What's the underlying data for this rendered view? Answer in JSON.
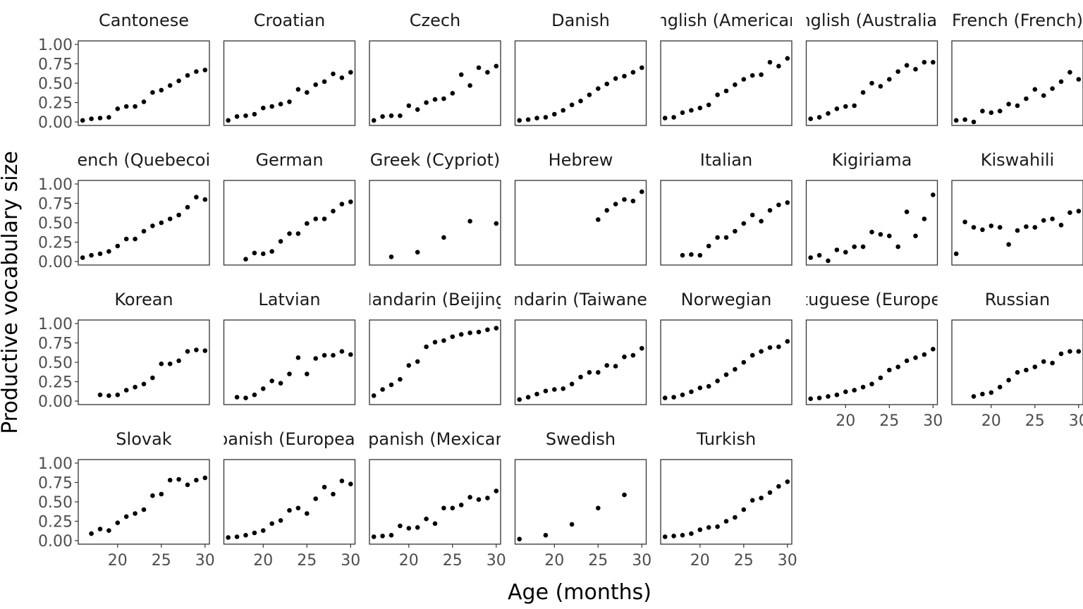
{
  "chart_data": {
    "type": "scatter",
    "facet": "language",
    "xlabel": "Age (months)",
    "ylabel": "Productive vocabulary size",
    "xlim": [
      15.5,
      30.5
    ],
    "ylim": [
      0,
      1
    ],
    "x_ticks": [
      20,
      25,
      30
    ],
    "y_ticks": [
      0,
      0.25,
      0.5,
      0.75,
      1
    ],
    "y_tick_labels": [
      "0.00",
      "0.25",
      "0.50",
      "0.75",
      "1.00"
    ],
    "x_tick_labels": [
      "20",
      "25",
      "30"
    ],
    "grid": false,
    "point_color": "#000000",
    "panels": [
      {
        "name": "Cantonese",
        "x": [
          16,
          17,
          18,
          19,
          20,
          21,
          22,
          23,
          24,
          25,
          26,
          27,
          28,
          29,
          30
        ],
        "y": [
          0.02,
          0.04,
          0.05,
          0.06,
          0.17,
          0.2,
          0.2,
          0.26,
          0.38,
          0.41,
          0.47,
          0.53,
          0.6,
          0.65,
          0.67
        ]
      },
      {
        "name": "Croatian",
        "x": [
          16,
          17,
          18,
          19,
          20,
          21,
          22,
          23,
          24,
          25,
          26,
          27,
          28,
          29,
          30
        ],
        "y": [
          0.02,
          0.07,
          0.08,
          0.1,
          0.18,
          0.2,
          0.23,
          0.26,
          0.42,
          0.38,
          0.48,
          0.52,
          0.62,
          0.57,
          0.64
        ]
      },
      {
        "name": "Czech",
        "x": [
          16,
          17,
          18,
          19,
          20,
          21,
          22,
          23,
          24,
          25,
          26,
          27,
          28,
          29,
          30
        ],
        "y": [
          0.02,
          0.07,
          0.08,
          0.08,
          0.21,
          0.16,
          0.25,
          0.29,
          0.3,
          0.37,
          0.61,
          0.47,
          0.7,
          0.64,
          0.72
        ]
      },
      {
        "name": "Danish",
        "x": [
          16,
          17,
          18,
          19,
          20,
          21,
          22,
          23,
          24,
          25,
          26,
          27,
          28,
          29,
          30
        ],
        "y": [
          0.02,
          0.03,
          0.05,
          0.06,
          0.1,
          0.15,
          0.22,
          0.27,
          0.35,
          0.43,
          0.49,
          0.56,
          0.59,
          0.64,
          0.7
        ]
      },
      {
        "name": "English (American)",
        "x": [
          16,
          17,
          18,
          19,
          20,
          21,
          22,
          23,
          24,
          25,
          26,
          27,
          28,
          29,
          30
        ],
        "y": [
          0.05,
          0.06,
          0.12,
          0.15,
          0.18,
          0.22,
          0.35,
          0.4,
          0.48,
          0.55,
          0.6,
          0.61,
          0.77,
          0.72,
          0.82
        ]
      },
      {
        "name": "English (Australian)",
        "x": [
          16,
          17,
          18,
          19,
          20,
          21,
          22,
          23,
          24,
          25,
          26,
          27,
          28,
          29,
          30
        ],
        "y": [
          0.04,
          0.06,
          0.11,
          0.17,
          0.2,
          0.21,
          0.38,
          0.5,
          0.46,
          0.55,
          0.65,
          0.73,
          0.68,
          0.77,
          0.77
        ]
      },
      {
        "name": "French (French)",
        "x": [
          16,
          17,
          18,
          19,
          20,
          21,
          22,
          23,
          24,
          25,
          26,
          27,
          28,
          29,
          30
        ],
        "y": [
          0.02,
          0.03,
          0.0,
          0.14,
          0.12,
          0.14,
          0.23,
          0.21,
          0.3,
          0.42,
          0.34,
          0.43,
          0.52,
          0.64,
          0.55
        ]
      },
      {
        "name": "French (Quebecois)",
        "x": [
          16,
          17,
          18,
          19,
          20,
          21,
          22,
          23,
          24,
          25,
          26,
          27,
          28,
          29,
          30
        ],
        "y": [
          0.05,
          0.08,
          0.1,
          0.13,
          0.2,
          0.29,
          0.29,
          0.39,
          0.46,
          0.5,
          0.55,
          0.6,
          0.7,
          0.83,
          0.8
        ]
      },
      {
        "name": "German",
        "x": [
          18,
          19,
          20,
          21,
          22,
          23,
          24,
          25,
          26,
          27,
          28,
          29,
          30
        ],
        "y": [
          0.03,
          0.11,
          0.1,
          0.13,
          0.26,
          0.36,
          0.36,
          0.49,
          0.55,
          0.55,
          0.65,
          0.74,
          0.77
        ]
      },
      {
        "name": "Greek (Cypriot)",
        "x": [
          18,
          21,
          24,
          27,
          30
        ],
        "y": [
          0.06,
          0.12,
          0.31,
          0.52,
          0.49
        ]
      },
      {
        "name": "Hebrew",
        "x": [
          25,
          26,
          27,
          28,
          29,
          30
        ],
        "y": [
          0.54,
          0.66,
          0.74,
          0.8,
          0.78,
          0.9
        ]
      },
      {
        "name": "Italian",
        "x": [
          18,
          19,
          20,
          21,
          22,
          23,
          24,
          25,
          26,
          27,
          28,
          29,
          30
        ],
        "y": [
          0.08,
          0.09,
          0.08,
          0.2,
          0.31,
          0.31,
          0.39,
          0.49,
          0.6,
          0.52,
          0.66,
          0.73,
          0.76
        ]
      },
      {
        "name": "Kigiriama",
        "x": [
          16,
          17,
          18,
          19,
          20,
          21,
          22,
          23,
          24,
          25,
          26,
          27,
          28,
          29,
          30
        ],
        "y": [
          0.05,
          0.08,
          0.01,
          0.15,
          0.12,
          0.19,
          0.19,
          0.38,
          0.35,
          0.33,
          0.19,
          0.64,
          0.33,
          0.55,
          0.86
        ]
      },
      {
        "name": "Kiswahili",
        "x": [
          16,
          17,
          18,
          19,
          20,
          21,
          22,
          23,
          24,
          25,
          26,
          27,
          28,
          29,
          30
        ],
        "y": [
          0.1,
          0.51,
          0.44,
          0.41,
          0.46,
          0.44,
          0.22,
          0.4,
          0.45,
          0.44,
          0.53,
          0.55,
          0.47,
          0.63,
          0.65
        ]
      },
      {
        "name": "Korean",
        "x": [
          18,
          19,
          20,
          21,
          22,
          23,
          24,
          25,
          26,
          27,
          28,
          29,
          30
        ],
        "y": [
          0.08,
          0.07,
          0.08,
          0.14,
          0.18,
          0.22,
          0.3,
          0.48,
          0.48,
          0.52,
          0.64,
          0.66,
          0.65
        ]
      },
      {
        "name": "Latvian",
        "x": [
          17,
          18,
          19,
          20,
          21,
          22,
          23,
          24,
          25,
          26,
          27,
          28,
          29,
          30
        ],
        "y": [
          0.05,
          0.04,
          0.08,
          0.16,
          0.26,
          0.23,
          0.35,
          0.56,
          0.35,
          0.55,
          0.59,
          0.59,
          0.64,
          0.6
        ]
      },
      {
        "name": "Mandarin (Beijing)",
        "x": [
          16,
          17,
          18,
          19,
          20,
          21,
          22,
          23,
          24,
          25,
          26,
          27,
          28,
          29,
          30
        ],
        "y": [
          0.07,
          0.15,
          0.21,
          0.28,
          0.46,
          0.51,
          0.7,
          0.76,
          0.78,
          0.83,
          0.86,
          0.88,
          0.89,
          0.92,
          0.94
        ]
      },
      {
        "name": "Mandarin (Taiwanese)",
        "x": [
          16,
          17,
          18,
          19,
          20,
          21,
          22,
          23,
          24,
          25,
          26,
          27,
          28,
          29,
          30
        ],
        "y": [
          0.02,
          0.05,
          0.09,
          0.13,
          0.15,
          0.16,
          0.22,
          0.31,
          0.37,
          0.37,
          0.46,
          0.45,
          0.57,
          0.59,
          0.68
        ]
      },
      {
        "name": "Norwegian",
        "x": [
          16,
          17,
          18,
          19,
          20,
          21,
          22,
          23,
          24,
          25,
          26,
          27,
          28,
          29,
          30
        ],
        "y": [
          0.04,
          0.05,
          0.08,
          0.12,
          0.17,
          0.19,
          0.26,
          0.34,
          0.41,
          0.5,
          0.59,
          0.64,
          0.69,
          0.7,
          0.77
        ]
      },
      {
        "name": "Portuguese (European)",
        "x": [
          16,
          17,
          18,
          19,
          20,
          21,
          22,
          23,
          24,
          25,
          26,
          27,
          28,
          29,
          30
        ],
        "y": [
          0.03,
          0.04,
          0.06,
          0.08,
          0.12,
          0.14,
          0.18,
          0.22,
          0.3,
          0.4,
          0.44,
          0.52,
          0.56,
          0.6,
          0.67
        ]
      },
      {
        "name": "Russian",
        "x": [
          18,
          19,
          20,
          21,
          22,
          23,
          24,
          25,
          26,
          27,
          28,
          29,
          30
        ],
        "y": [
          0.06,
          0.09,
          0.11,
          0.18,
          0.27,
          0.37,
          0.4,
          0.44,
          0.51,
          0.49,
          0.61,
          0.64,
          0.64
        ]
      },
      {
        "name": "Slovak",
        "x": [
          17,
          18,
          19,
          20,
          21,
          22,
          23,
          24,
          25,
          26,
          27,
          28,
          29,
          30
        ],
        "y": [
          0.09,
          0.15,
          0.13,
          0.23,
          0.31,
          0.35,
          0.4,
          0.58,
          0.6,
          0.78,
          0.79,
          0.72,
          0.78,
          0.81
        ]
      },
      {
        "name": "Spanish (European)",
        "x": [
          16,
          17,
          18,
          19,
          20,
          21,
          22,
          23,
          24,
          25,
          26,
          27,
          28,
          29,
          30
        ],
        "y": [
          0.04,
          0.05,
          0.07,
          0.1,
          0.13,
          0.22,
          0.26,
          0.39,
          0.42,
          0.35,
          0.54,
          0.69,
          0.6,
          0.77,
          0.73
        ]
      },
      {
        "name": "Spanish (Mexican)",
        "x": [
          16,
          17,
          18,
          19,
          20,
          21,
          22,
          23,
          24,
          25,
          26,
          27,
          28,
          29,
          30
        ],
        "y": [
          0.05,
          0.06,
          0.07,
          0.19,
          0.16,
          0.17,
          0.28,
          0.22,
          0.42,
          0.42,
          0.46,
          0.56,
          0.53,
          0.55,
          0.64
        ]
      },
      {
        "name": "Swedish",
        "x": [
          16,
          19,
          22,
          25,
          28
        ],
        "y": [
          0.02,
          0.07,
          0.21,
          0.42,
          0.59
        ]
      },
      {
        "name": "Turkish",
        "x": [
          16,
          17,
          18,
          19,
          20,
          21,
          22,
          23,
          24,
          25,
          26,
          27,
          28,
          29,
          30
        ],
        "y": [
          0.05,
          0.06,
          0.07,
          0.09,
          0.14,
          0.17,
          0.18,
          0.25,
          0.3,
          0.4,
          0.52,
          0.55,
          0.62,
          0.7,
          0.76
        ]
      }
    ]
  }
}
